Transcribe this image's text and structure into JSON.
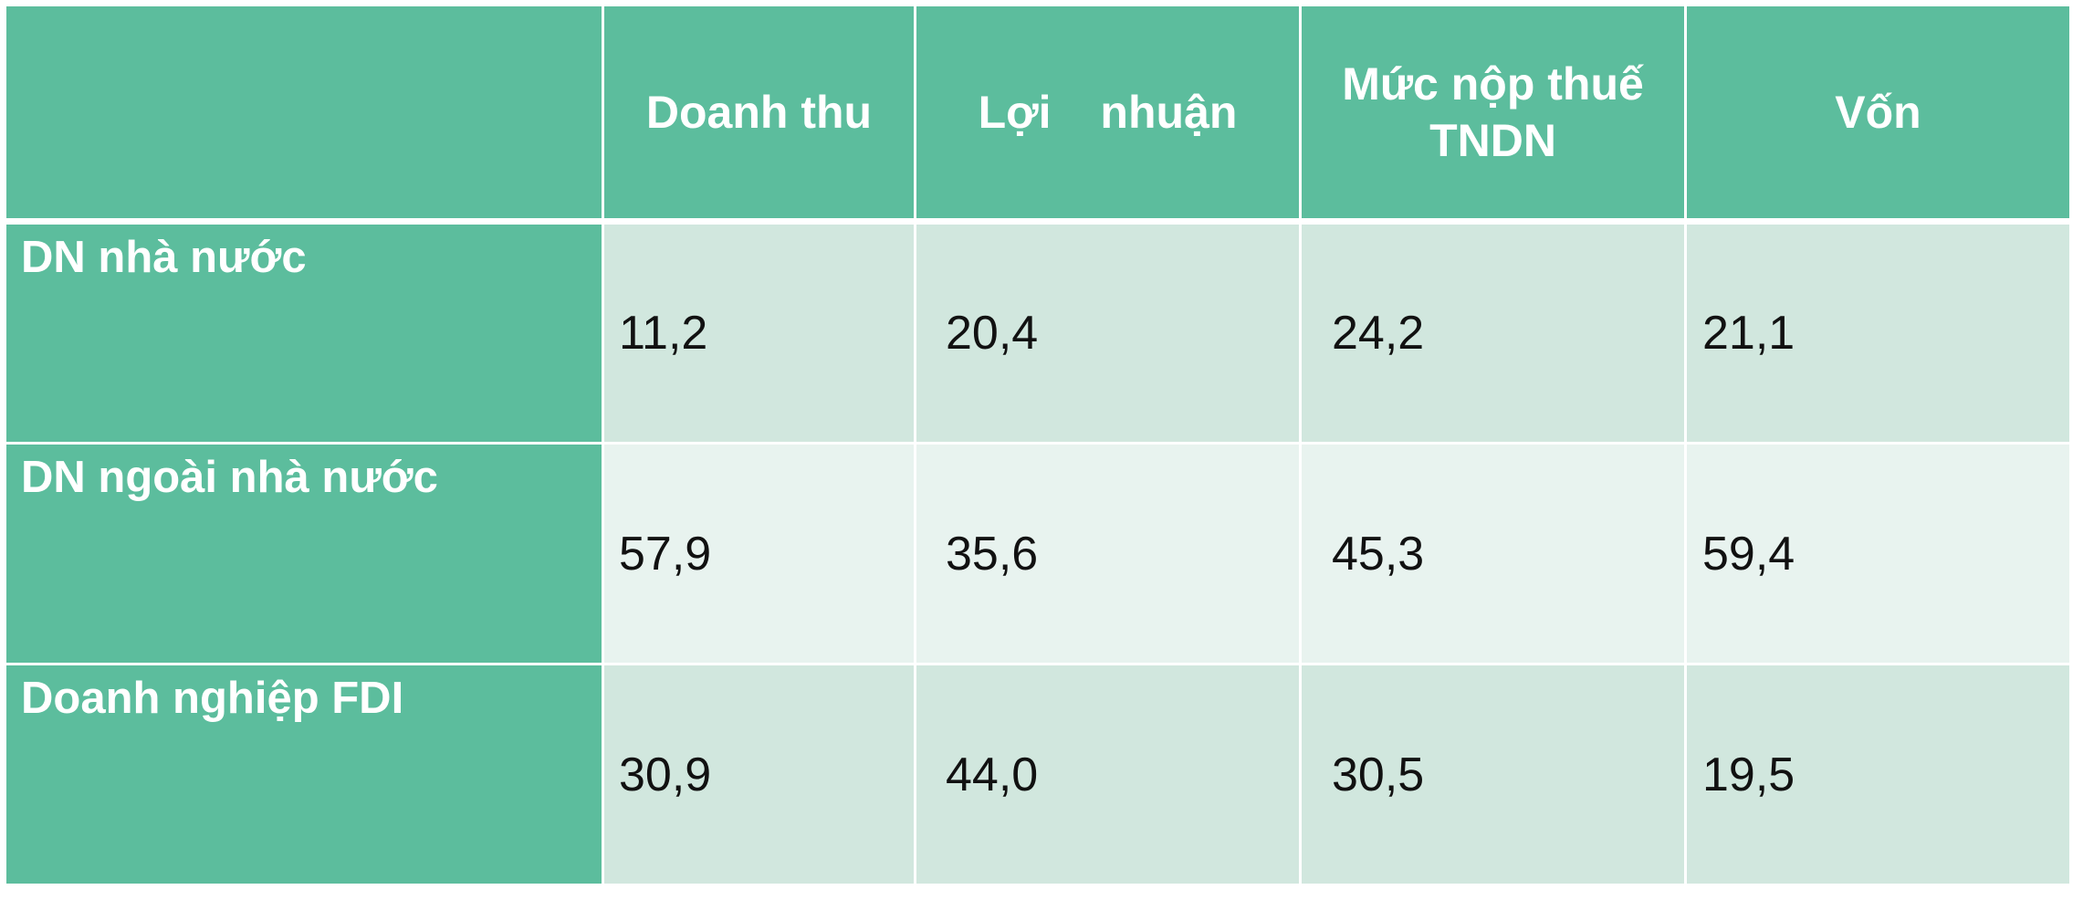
{
  "table": {
    "header": [
      "Doanh thu",
      "Lợi nhuận",
      "Mức nộp thuế TNDN",
      "Vốn"
    ],
    "rows": [
      [
        "DN nhà nước",
        "11,2",
        "20,4",
        "24,2",
        "21,1"
      ],
      [
        "DN ngoài nhà nước",
        "57,9",
        "35,6",
        "45,3",
        "59,4"
      ],
      [
        "Doanh nghiệp FDI",
        "30,9",
        "44,0",
        "30,5",
        "19,5"
      ]
    ]
  }
}
